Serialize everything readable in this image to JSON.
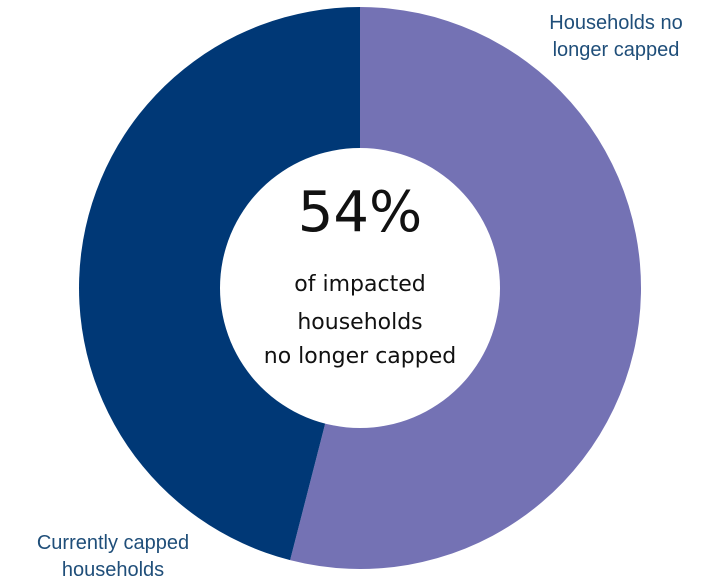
{
  "chart_data": {
    "type": "pie",
    "donut": true,
    "categories": [
      "Households no longer capped",
      "Currently capped households"
    ],
    "values": [
      54,
      46
    ],
    "unit": "%",
    "colors": [
      "#7472b4",
      "#003876"
    ],
    "legend": {
      "no_longer_capped": [
        "Households no",
        "longer capped"
      ],
      "currently_capped": [
        "Currently capped",
        "households"
      ]
    },
    "center_label": {
      "value": "54%",
      "lines": [
        "of impacted",
        "households",
        "no longer capped"
      ]
    }
  }
}
